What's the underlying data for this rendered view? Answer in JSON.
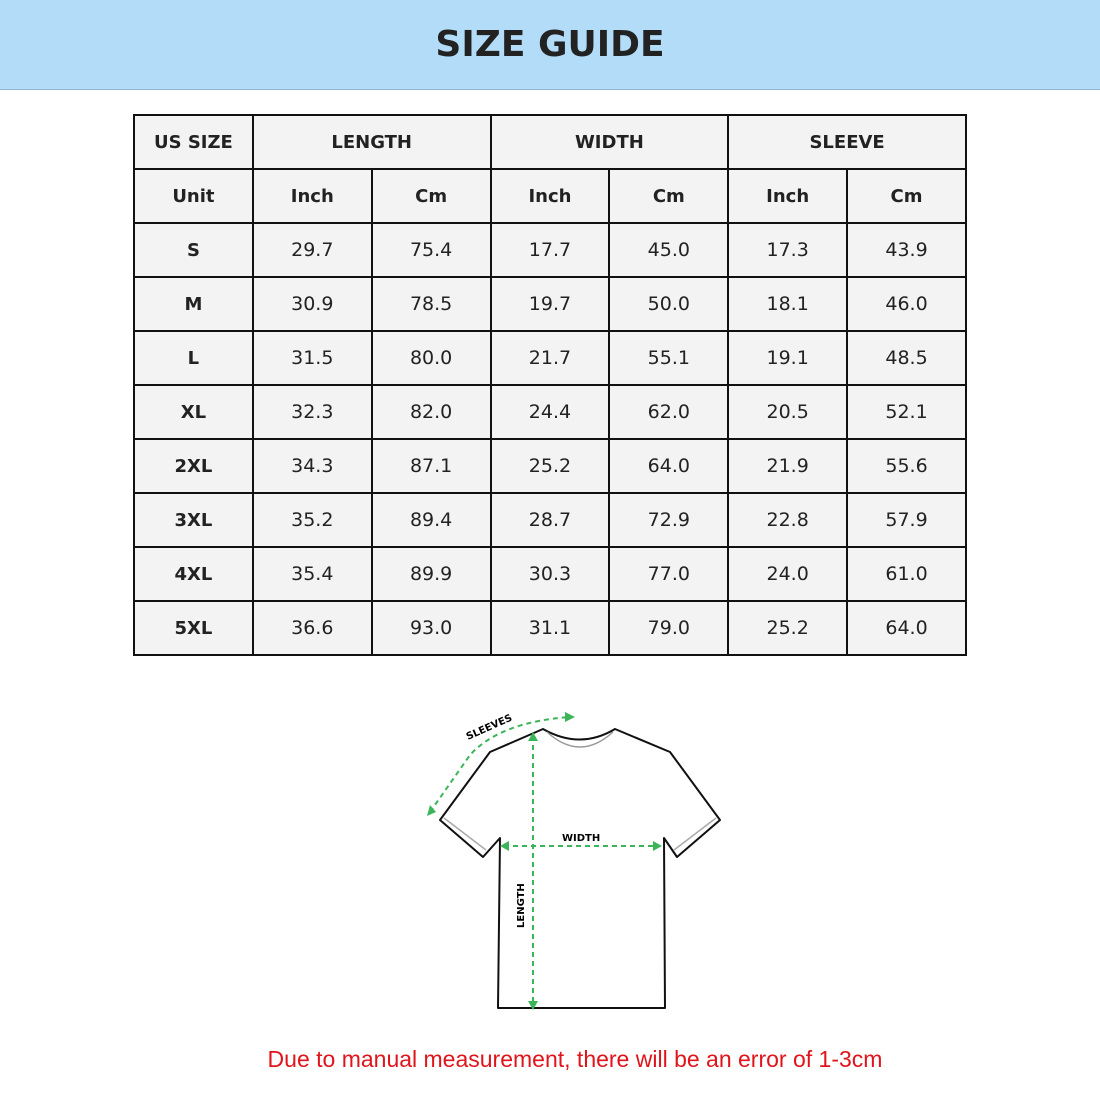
{
  "header": {
    "title": "SIZE GUIDE"
  },
  "table": {
    "group_headers": [
      "US SIZE",
      "LENGTH",
      "WIDTH",
      "SLEEVE"
    ],
    "unit_row": [
      "Unit",
      "Inch",
      "Cm",
      "Inch",
      "Cm",
      "Inch",
      "Cm"
    ],
    "rows": [
      [
        "S",
        "29.7",
        "75.4",
        "17.7",
        "45.0",
        "17.3",
        "43.9"
      ],
      [
        "M",
        "30.9",
        "78.5",
        "19.7",
        "50.0",
        "18.1",
        "46.0"
      ],
      [
        "L",
        "31.5",
        "80.0",
        "21.7",
        "55.1",
        "19.1",
        "48.5"
      ],
      [
        "XL",
        "32.3",
        "82.0",
        "24.4",
        "62.0",
        "20.5",
        "52.1"
      ],
      [
        "2XL",
        "34.3",
        "87.1",
        "25.2",
        "64.0",
        "21.9",
        "55.6"
      ],
      [
        "3XL",
        "35.2",
        "89.4",
        "28.7",
        "72.9",
        "22.8",
        "57.9"
      ],
      [
        "4XL",
        "35.4",
        "89.9",
        "30.3",
        "77.0",
        "24.0",
        "61.0"
      ],
      [
        "5XL",
        "36.6",
        "93.0",
        "31.1",
        "79.0",
        "25.2",
        "64.0"
      ]
    ]
  },
  "diagram": {
    "labels": {
      "sleeves": "SLEEVES",
      "width": "WIDTH",
      "length": "LENGTH"
    },
    "arrow_color": "#3cb55a"
  },
  "footer": {
    "note": "Due to manual measurement, there will be an error of 1-3cm",
    "note_color": "#e0141b"
  }
}
